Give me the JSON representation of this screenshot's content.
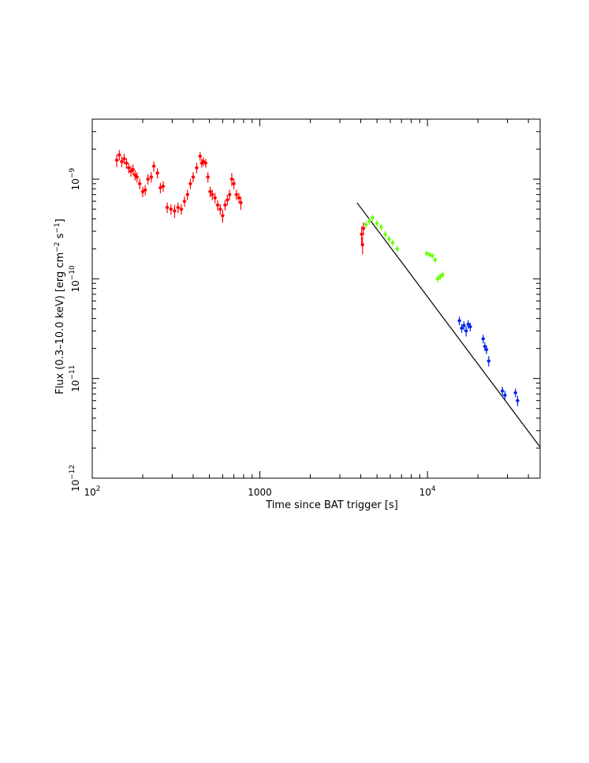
{
  "chart_data": {
    "type": "scatter",
    "x_scale": "log",
    "y_scale": "log",
    "xlim": [
      100,
      47000
    ],
    "ylim": [
      1e-12,
      4e-09
    ],
    "xlabel": "Time since BAT trigger [s]",
    "ylabel": {
      "pre": "Flux (0.3–10.0 keV) [erg cm",
      "exp1": "−2",
      "mid": " s",
      "exp2": "−1",
      "post": "]"
    },
    "x_ticks": [
      {
        "value": 100,
        "base": "10",
        "exp": "2"
      },
      {
        "value": 1000,
        "base": "1000",
        "exp": ""
      },
      {
        "value": 10000,
        "base": "10",
        "exp": "4"
      }
    ],
    "y_ticks": [
      {
        "value": 1e-12,
        "base": "10",
        "exp": "−12"
      },
      {
        "value": 1e-11,
        "base": "10",
        "exp": "−11"
      },
      {
        "value": 1e-10,
        "base": "10",
        "exp": "−10"
      },
      {
        "value": 1e-09,
        "base": "10",
        "exp": "−9"
      }
    ],
    "grid": false,
    "series": [
      {
        "color": "#ff0000",
        "points": [
          [
            140,
            1.55e-09,
            0.15
          ],
          [
            145,
            1.75e-09,
            0.12
          ],
          [
            150,
            1.5e-09,
            0.12
          ],
          [
            155,
            1.6e-09,
            0.12
          ],
          [
            160,
            1.45e-09,
            0.12
          ],
          [
            165,
            1.3e-09,
            0.12
          ],
          [
            170,
            1.2e-09,
            0.12
          ],
          [
            175,
            1.25e-09,
            0.12
          ],
          [
            180,
            1.1e-09,
            0.12
          ],
          [
            185,
            1.05e-09,
            0.12
          ],
          [
            192,
            9e-10,
            0.12
          ],
          [
            200,
            7.5e-10,
            0.12
          ],
          [
            207,
            7.8e-10,
            0.12
          ],
          [
            215,
            1e-09,
            0.12
          ],
          [
            225,
            1.05e-09,
            0.12
          ],
          [
            233,
            1.35e-09,
            0.12
          ],
          [
            245,
            1.15e-09,
            0.12
          ],
          [
            255,
            8.2e-10,
            0.12
          ],
          [
            265,
            8.5e-10,
            0.12
          ],
          [
            280,
            5.2e-10,
            0.12
          ],
          [
            295,
            5e-10,
            0.12
          ],
          [
            310,
            4.8e-10,
            0.15
          ],
          [
            325,
            5.2e-10,
            0.12
          ],
          [
            340,
            5e-10,
            0.12
          ],
          [
            355,
            6e-10,
            0.12
          ],
          [
            370,
            7e-10,
            0.12
          ],
          [
            385,
            9e-10,
            0.12
          ],
          [
            400,
            1.05e-09,
            0.12
          ],
          [
            420,
            1.3e-09,
            0.12
          ],
          [
            440,
            1.7e-09,
            0.1
          ],
          [
            450,
            1.45e-09,
            0.1
          ],
          [
            460,
            1.5e-09,
            0.1
          ],
          [
            475,
            1.45e-09,
            0.1
          ],
          [
            490,
            1.05e-09,
            0.12
          ],
          [
            505,
            7.5e-10,
            0.12
          ],
          [
            520,
            7e-10,
            0.12
          ],
          [
            540,
            6.5e-10,
            0.12
          ],
          [
            560,
            5.5e-10,
            0.12
          ],
          [
            580,
            5e-10,
            0.12
          ],
          [
            600,
            4.3e-10,
            0.15
          ],
          [
            620,
            5.5e-10,
            0.12
          ],
          [
            640,
            6.2e-10,
            0.12
          ],
          [
            660,
            7e-10,
            0.12
          ],
          [
            680,
            1e-09,
            0.15
          ],
          [
            700,
            9e-10,
            0.12
          ],
          [
            725,
            7e-10,
            0.12
          ],
          [
            750,
            6.5e-10,
            0.12
          ],
          [
            770,
            5.8e-10,
            0.15
          ],
          [
            4050,
            2.8e-10,
            0.2
          ],
          [
            4100,
            2.2e-10,
            0.2
          ],
          [
            4150,
            3.2e-10,
            0.15
          ]
        ]
      },
      {
        "color": "#66ff00",
        "points": [
          [
            4300,
            3.5e-10,
            0.08
          ],
          [
            4500,
            3.8e-10,
            0.08
          ],
          [
            4700,
            4.1e-10,
            0.08
          ],
          [
            5000,
            3.6e-10,
            0.08
          ],
          [
            5300,
            3.3e-10,
            0.08
          ],
          [
            5600,
            2.8e-10,
            0.08
          ],
          [
            5900,
            2.5e-10,
            0.08
          ],
          [
            6200,
            2.3e-10,
            0.08
          ],
          [
            6600,
            2e-10,
            0.08
          ],
          [
            9900,
            1.8e-10,
            0.06
          ],
          [
            10300,
            1.75e-10,
            0.06
          ],
          [
            10700,
            1.7e-10,
            0.06
          ],
          [
            11100,
            1.55e-10,
            0.06
          ],
          [
            11500,
            1e-10,
            0.08
          ],
          [
            11900,
            1.05e-10,
            0.08
          ],
          [
            12300,
            1.1e-10,
            0.08
          ]
        ]
      },
      {
        "color": "#0022ee",
        "points": [
          [
            15500,
            3.8e-11,
            0.1
          ],
          [
            16000,
            3.2e-11,
            0.1
          ],
          [
            16500,
            3.4e-11,
            0.1
          ],
          [
            17000,
            3e-11,
            0.12
          ],
          [
            17500,
            3.5e-11,
            0.1
          ],
          [
            18000,
            3.3e-11,
            0.1
          ],
          [
            21500,
            2.5e-11,
            0.1
          ],
          [
            22000,
            2.1e-11,
            0.1
          ],
          [
            22500,
            1.95e-11,
            0.1
          ],
          [
            23200,
            1.5e-11,
            0.12
          ],
          [
            28000,
            7.5e-12,
            0.1
          ],
          [
            29000,
            6.8e-12,
            0.1
          ],
          [
            33500,
            7.2e-12,
            0.1
          ],
          [
            34500,
            6e-12,
            0.12
          ]
        ]
      }
    ],
    "model_line": {
      "color": "#000000",
      "points": [
        [
          3800,
          5.8e-10
        ],
        [
          47000,
          2.05e-12
        ]
      ]
    }
  }
}
